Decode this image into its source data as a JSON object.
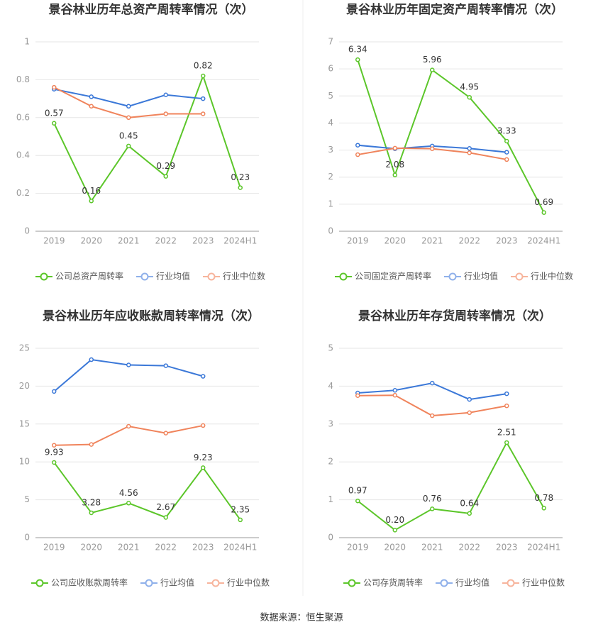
{
  "chart_data": [
    {
      "type": "line",
      "title": "景谷林业历年总资产周转率情况（次）",
      "categories": [
        "2019",
        "2020",
        "2021",
        "2022",
        "2023",
        "2024H1"
      ],
      "ylim": [
        0,
        1
      ],
      "yticks": [
        0,
        0.2,
        0.4,
        0.6,
        0.8,
        1
      ],
      "grid": true,
      "legend": "bottom",
      "series": [
        {
          "name": "公司总资产周转率",
          "color": "#5cc62a",
          "values": [
            0.57,
            0.16,
            0.45,
            0.29,
            0.82,
            0.23
          ],
          "labels": true
        },
        {
          "name": "行业均值",
          "color": "#3b78d8",
          "values": [
            0.75,
            0.71,
            0.66,
            0.72,
            0.7,
            null
          ]
        },
        {
          "name": "行业中位数",
          "color": "#f0845c",
          "values": [
            0.76,
            0.66,
            0.6,
            0.62,
            0.62,
            null
          ]
        }
      ]
    },
    {
      "type": "line",
      "title": "景谷林业历年固定资产周转率情况（次）",
      "categories": [
        "2019",
        "2020",
        "2021",
        "2022",
        "2023",
        "2024H1"
      ],
      "ylim": [
        0,
        7
      ],
      "yticks": [
        0,
        1,
        2,
        3,
        4,
        5,
        6,
        7
      ],
      "grid": true,
      "legend": "bottom",
      "series": [
        {
          "name": "公司固定资产周转率",
          "color": "#5cc62a",
          "values": [
            6.34,
            2.08,
            5.96,
            4.95,
            3.33,
            0.69
          ],
          "labels": true
        },
        {
          "name": "行业均值",
          "color": "#3b78d8",
          "values": [
            3.18,
            3.05,
            3.15,
            3.06,
            2.92,
            null
          ]
        },
        {
          "name": "行业中位数",
          "color": "#f0845c",
          "values": [
            2.83,
            3.07,
            3.05,
            2.9,
            2.65,
            null
          ]
        }
      ]
    },
    {
      "type": "line",
      "title": "景谷林业历年应收账款周转率情况（次）",
      "categories": [
        "2019",
        "2020",
        "2021",
        "2022",
        "2023",
        "2024H1"
      ],
      "ylim": [
        0,
        25
      ],
      "yticks": [
        0,
        5,
        10,
        15,
        20,
        25
      ],
      "grid": true,
      "legend": "bottom",
      "series": [
        {
          "name": "公司应收账款周转率",
          "color": "#5cc62a",
          "values": [
            9.93,
            3.28,
            4.56,
            2.67,
            9.23,
            2.35
          ],
          "labels": true
        },
        {
          "name": "行业均值",
          "color": "#3b78d8",
          "values": [
            19.3,
            23.5,
            22.8,
            22.7,
            21.3,
            null
          ]
        },
        {
          "name": "行业中位数",
          "color": "#f0845c",
          "values": [
            12.2,
            12.3,
            14.7,
            13.8,
            14.8,
            null
          ]
        }
      ]
    },
    {
      "type": "line",
      "title": "景谷林业历年存货周转率情况（次）",
      "categories": [
        "2019",
        "2020",
        "2021",
        "2022",
        "2023",
        "2024H1"
      ],
      "ylim": [
        0,
        5
      ],
      "yticks": [
        0,
        1,
        2,
        3,
        4,
        5
      ],
      "grid": true,
      "legend": "bottom",
      "series": [
        {
          "name": "公司存货周转率",
          "color": "#5cc62a",
          "values": [
            0.97,
            0.2,
            0.76,
            0.64,
            2.51,
            0.78
          ],
          "value_labels": [
            "0.97",
            "0.20",
            "0.76",
            "0.64",
            "2.51",
            "0.78"
          ],
          "labels": true
        },
        {
          "name": "行业均值",
          "color": "#3b78d8",
          "values": [
            3.82,
            3.89,
            4.08,
            3.65,
            3.8,
            null
          ]
        },
        {
          "name": "行业中位数",
          "color": "#f0845c",
          "values": [
            3.75,
            3.76,
            3.22,
            3.3,
            3.48,
            null
          ]
        }
      ]
    }
  ],
  "source": "数据来源：恒生聚源"
}
